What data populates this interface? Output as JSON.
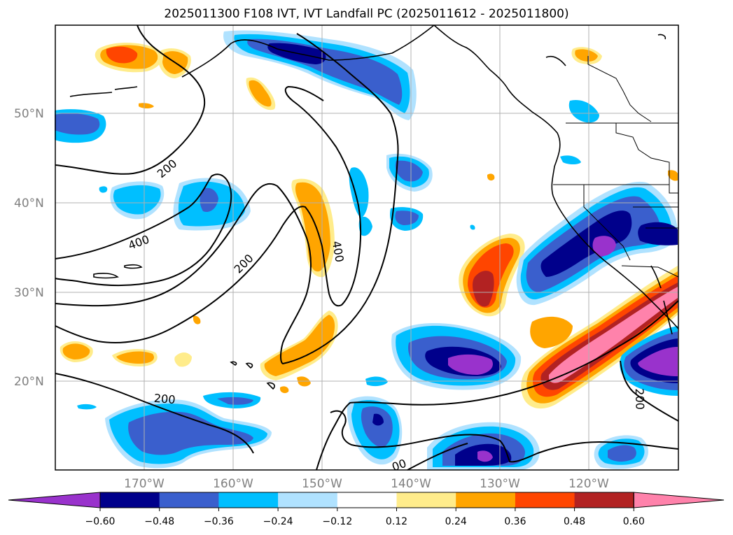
{
  "title": "2025011300 F108 IVT, IVT Landfall PC (2025011612 - 2025011800)",
  "latitude_labels": [
    "50°N",
    "40°N",
    "30°N",
    "20°N"
  ],
  "longitude_labels": [
    "170°W",
    "160°W",
    "150°W",
    "140°W",
    "130°W",
    "120°W"
  ],
  "contour_labels": [
    "200",
    "400",
    "200",
    "400",
    "200",
    "200",
    "00"
  ],
  "colorbar": {
    "ticks": [
      "−0.60",
      "−0.48",
      "−0.36",
      "−0.24",
      "−0.12",
      "0.12",
      "0.24",
      "0.36",
      "0.48",
      "0.60"
    ],
    "colors": [
      "#9932CC",
      "#00008B",
      "#3A5FCD",
      "#00BFFF",
      "#B0E2FF",
      "#FFFFFF",
      "#FFEC8B",
      "#FFA500",
      "#FF4500",
      "#B22222",
      "#FF82AB"
    ]
  },
  "palette": {
    "neg_extreme": "#9932CC",
    "neg_strong": "#00008B",
    "neg_mid": "#3A5FCD",
    "neg_low": "#00BFFF",
    "neg_faint": "#B0E2FF",
    "pos_faint": "#FFEC8B",
    "pos_low": "#FFA500",
    "pos_mid": "#FF4500",
    "pos_strong": "#B22222",
    "pos_extreme": "#FF82AB"
  }
}
